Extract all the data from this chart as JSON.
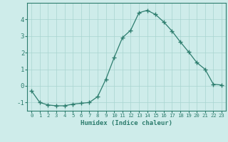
{
  "x": [
    0,
    1,
    2,
    3,
    4,
    5,
    6,
    7,
    8,
    9,
    10,
    11,
    12,
    13,
    14,
    15,
    16,
    17,
    18,
    19,
    20,
    21,
    22,
    23
  ],
  "y": [
    -0.3,
    -1.0,
    -1.15,
    -1.2,
    -1.2,
    -1.1,
    -1.05,
    -1.0,
    -0.65,
    0.4,
    1.7,
    2.9,
    3.35,
    4.4,
    4.55,
    4.3,
    3.85,
    3.3,
    2.65,
    2.05,
    1.4,
    1.0,
    0.1,
    0.05
  ],
  "line_color": "#2d7d6e",
  "marker": "+",
  "marker_size": 4,
  "marker_linewidth": 1.0,
  "line_width": 0.9,
  "background_color": "#ceecea",
  "grid_color": "#a8d5d0",
  "xlabel": "Humidex (Indice chaleur)",
  "xlim": [
    -0.5,
    23.5
  ],
  "ylim": [
    -1.5,
    5.0
  ],
  "yticks": [
    -1,
    0,
    1,
    2,
    3,
    4
  ],
  "tick_color": "#2d7d6e",
  "label_color": "#2d7d6e",
  "font_family": "monospace",
  "xlabel_fontsize": 6.5,
  "xtick_fontsize": 5.2,
  "ytick_fontsize": 6.5
}
